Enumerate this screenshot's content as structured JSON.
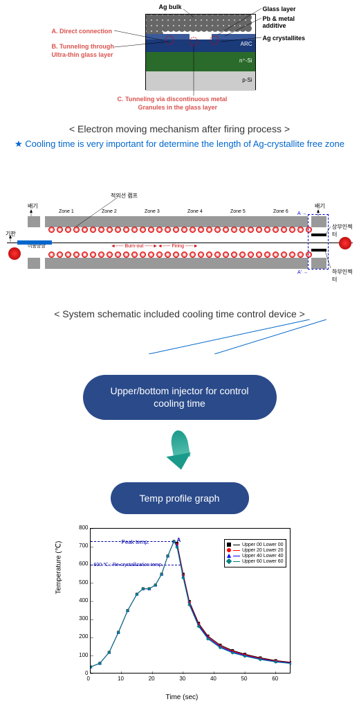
{
  "diagram1": {
    "labels": {
      "ag_bulk": "Ag bulk",
      "glass_layer": "Glass layer",
      "pb_additive": "Pb & metal  additive",
      "ag_crystallites": "Ag  crystallites",
      "a_direct": "A. Direct connection",
      "b_tunnel": "B. Tunneling through",
      "ultrathin": "Ultra-thin glass layer",
      "c_tunnel": "C. Tunneling via discontinuous metal",
      "granules": "Granules in the glass layer"
    },
    "layers": {
      "arc": "ARC",
      "nsi": "n⁺-Si",
      "psi": "p-Si"
    },
    "caption": "< Electron moving mechanism after firing process >",
    "note": "★ Cooling time is very important for determine the length of Ag-crystallite free zone"
  },
  "diagram2": {
    "top_label": "적외선 램프",
    "left_labels": {
      "gijun": "기판",
      "baegi": "배기",
      "isong": "이송방향"
    },
    "right_labels": {
      "baegi": "배기",
      "upper_inj": "상부인젝터",
      "lower_inj": "하부인젝터"
    },
    "zones": [
      "Zone 1",
      "Zone 2",
      "Zone 3",
      "Zone 4",
      "Zone 5",
      "Zone 6"
    ],
    "process": {
      "burnout": "Burn-out",
      "firing": "Firing"
    },
    "a_marks": {
      "a": "A",
      "a_prime": "A'"
    },
    "caption": "< System schematic included cooling time control device >",
    "circles_per_row": 32,
    "zone_color": "#999999",
    "circle_color": "#ff6b6b"
  },
  "bubbles": {
    "injector": "Upper/bottom injector for control cooling time",
    "temp_profile": "Temp profile graph"
  },
  "chart": {
    "type": "line",
    "ylabel": "Temperature (℃)",
    "xlabel": "Time (sec)",
    "ylim": [
      0,
      800
    ],
    "xlim": [
      0,
      65
    ],
    "ytick_step": 100,
    "xtick_step": 10,
    "xticks": [
      0,
      10,
      20,
      30,
      40,
      50,
      60
    ],
    "yticks": [
      0,
      100,
      200,
      300,
      400,
      500,
      600,
      700,
      800
    ],
    "series": [
      {
        "name": "Upper 00 Lower 00",
        "color": "#000000",
        "marker": "square"
      },
      {
        "name": "Upper 20 Lower 20",
        "color": "#ff0000",
        "marker": "circle"
      },
      {
        "name": "Upper 40 Lower 40",
        "color": "#0000ff",
        "marker": "triangle"
      },
      {
        "name": "Upper 60 Lower 60",
        "color": "#008080",
        "marker": "diamond"
      }
    ],
    "data_points": [
      {
        "x": 0,
        "y": 40
      },
      {
        "x": 3,
        "y": 60
      },
      {
        "x": 6,
        "y": 120
      },
      {
        "x": 9,
        "y": 230
      },
      {
        "x": 12,
        "y": 350
      },
      {
        "x": 15,
        "y": 440
      },
      {
        "x": 17,
        "y": 470
      },
      {
        "x": 19,
        "y": 470
      },
      {
        "x": 21,
        "y": 490
      },
      {
        "x": 23,
        "y": 550
      },
      {
        "x": 25,
        "y": 650
      },
      {
        "x": 27,
        "y": 730
      },
      {
        "x": 28,
        "y": 720
      },
      {
        "x": 30,
        "y": 550
      },
      {
        "x": 32,
        "y": 400
      },
      {
        "x": 35,
        "y": 280
      },
      {
        "x": 38,
        "y": 210
      },
      {
        "x": 42,
        "y": 160
      },
      {
        "x": 46,
        "y": 130
      },
      {
        "x": 50,
        "y": 110
      },
      {
        "x": 55,
        "y": 90
      },
      {
        "x": 60,
        "y": 75
      },
      {
        "x": 65,
        "y": 65
      }
    ],
    "annotations": {
      "peak": "Peak temp.",
      "peak_marker": "A",
      "recryst": "600 ℃ : Re-crystallization temp.",
      "recryst_y": 600
    },
    "grid_color": "#e0e0e0",
    "background_color": "#ffffff"
  }
}
